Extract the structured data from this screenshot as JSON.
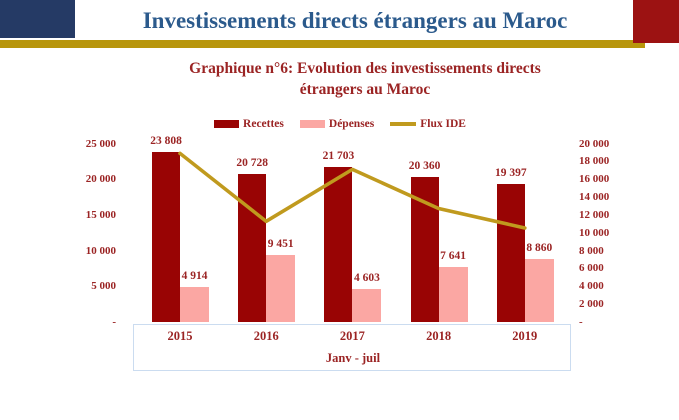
{
  "header": {
    "title": "Investissements directs étrangers au Maroc"
  },
  "colors": {
    "navy-block": "#253a65",
    "gold-rule": "#b8960c",
    "red-block": "#9c1212",
    "title-blue": "#2b5a8c",
    "chart-text": "#9b2424",
    "axis-box-border": "#cbdcf0"
  },
  "chart_data": {
    "type": "bar",
    "title": "Graphique n°6: Evolution des investissements directs étrangers au Maroc",
    "title_lines": [
      "Graphique n°6: Evolution des investissements directs",
      "étrangers au Maroc"
    ],
    "categories": [
      "2015",
      "2016",
      "2017",
      "2018",
      "2019"
    ],
    "series": [
      {
        "name": "Recettes",
        "type": "bar",
        "axis": "left",
        "color": "#990404",
        "values": [
          23808,
          20728,
          21703,
          20360,
          19397
        ],
        "data_labels": [
          "23 808",
          "20 728",
          "21 703",
          "20 360",
          "19 397"
        ]
      },
      {
        "name": "Dépenses",
        "type": "bar",
        "axis": "left",
        "color": "#fba7a3",
        "values": [
          4914,
          9451,
          4603,
          7641,
          8860
        ],
        "data_labels": [
          "4 914",
          "9 451",
          "4 603",
          "7 641",
          "8 860"
        ]
      },
      {
        "name": "Flux IDE",
        "type": "line",
        "axis": "right",
        "color": "#c09a1e",
        "values": [
          18894,
          11277,
          17100,
          12719,
          10537
        ]
      }
    ],
    "left_axis": {
      "min": 0,
      "max": 25000,
      "step": 5000,
      "tick_labels": [
        "25 000",
        "20 000",
        "15 000",
        "10 000",
        "5 000",
        "-"
      ]
    },
    "right_axis": {
      "min": 0,
      "max": 20000,
      "step": 2000,
      "tick_labels": [
        "20 000",
        "18 000",
        "16 000",
        "14 000",
        "12 000",
        "10 000",
        "8 000",
        "6 000",
        "4 000",
        "2 000",
        "-"
      ]
    },
    "xlabel": "Janv - juil",
    "legend": [
      "Recettes",
      "Dépenses",
      "Flux IDE"
    ],
    "legend_position": "top",
    "grid": false
  }
}
